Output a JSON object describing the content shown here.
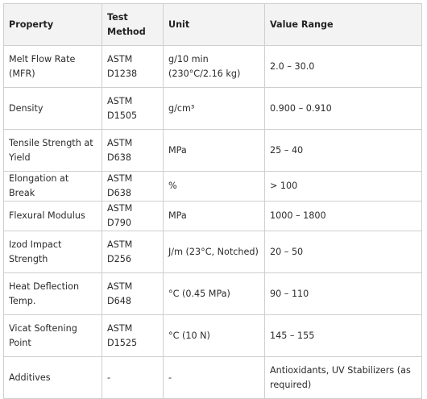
{
  "headers": {
    "property": "Property",
    "method": "Test Method",
    "unit": "Unit",
    "value": "Value Range"
  },
  "rows": [
    {
      "property": "Melt Flow Rate (MFR)",
      "method": "ASTM D1238",
      "unit": "g/10 min (230°C/2.16 kg)",
      "value": "2.0 – 30.0"
    },
    {
      "property": "Density",
      "method": "ASTM D1505",
      "unit": "g/cm³",
      "value": "0.900 – 0.910"
    },
    {
      "property": "Tensile Strength at Yield",
      "method": "ASTM D638",
      "unit": "MPa",
      "value": "25 – 40"
    },
    {
      "property": "Elongation at Break",
      "method": "ASTM D638",
      "unit": "%",
      "value": "> 100"
    },
    {
      "property": "Flexural Modulus",
      "method": "ASTM D790",
      "unit": "MPa",
      "value": "1000 – 1800"
    },
    {
      "property": "Izod Impact Strength",
      "method": "ASTM D256",
      "unit": "J/m (23°C, Notched)",
      "value": "20 – 50"
    },
    {
      "property": "Heat Deflection Temp.",
      "method": "ASTM D648",
      "unit": "°C (0.45 MPa)",
      "value": "90 – 110"
    },
    {
      "property": "Vicat Softening Point",
      "method": "ASTM D1525",
      "unit": "°C (10 N)",
      "value": "145 – 155"
    },
    {
      "property": "Additives",
      "method": "-",
      "unit": "-",
      "value": "Antioxidants, UV Stabilizers (as required)"
    }
  ]
}
